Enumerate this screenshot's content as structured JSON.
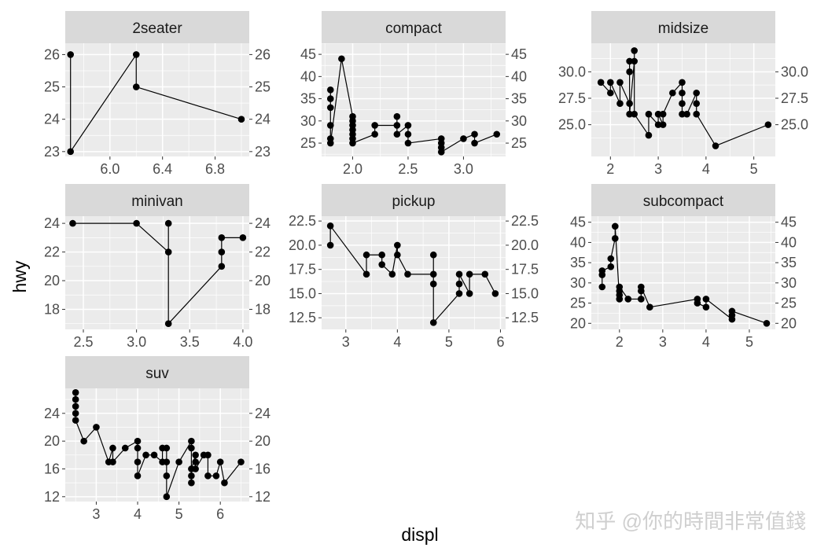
{
  "chart_data": {
    "type": "line",
    "xlabel": "displ",
    "ylabel": "hwy",
    "watermark": "知乎 @你的時間非常值錢",
    "colors": {
      "panel_bg": "#ebebeb",
      "grid": "#ffffff",
      "strip_bg": "#d9d9d9",
      "line": "#000000",
      "point": "#000000"
    },
    "grid": true,
    "panels": [
      {
        "title": "2seater",
        "xlim": [
          5.66,
          7.06
        ],
        "ylim": [
          22.85,
          26.35
        ],
        "xticks": [
          6.0,
          6.4,
          6.8
        ],
        "xtick_labels": [
          "6.0",
          "6.4",
          "6.8"
        ],
        "yticks": [
          23,
          24,
          25,
          26
        ],
        "ytick_labels": [
          "23",
          "24",
          "25",
          "26"
        ],
        "points": [
          [
            5.7,
            26
          ],
          [
            5.7,
            23
          ],
          [
            6.2,
            26
          ],
          [
            6.2,
            25
          ],
          [
            7.0,
            24
          ]
        ]
      },
      {
        "title": "compact",
        "xlim": [
          1.72,
          3.38
        ],
        "ylim": [
          22.0,
          47.5
        ],
        "xticks": [
          2.0,
          2.5,
          3.0
        ],
        "xtick_labels": [
          "2.0",
          "2.5",
          "3.0"
        ],
        "yticks": [
          25,
          30,
          35,
          40,
          45
        ],
        "ytick_labels": [
          "25",
          "30",
          "35",
          "40",
          "45"
        ],
        "points": [
          [
            1.8,
            37
          ],
          [
            1.8,
            35
          ],
          [
            1.8,
            33
          ],
          [
            1.8,
            29
          ],
          [
            1.8,
            26
          ],
          [
            1.8,
            25
          ],
          [
            1.9,
            44
          ],
          [
            2.0,
            31
          ],
          [
            2.0,
            30
          ],
          [
            2.0,
            29
          ],
          [
            2.0,
            28
          ],
          [
            2.0,
            27
          ],
          [
            2.0,
            26
          ],
          [
            2.0,
            25
          ],
          [
            2.2,
            27
          ],
          [
            2.2,
            29
          ],
          [
            2.4,
            29
          ],
          [
            2.4,
            31
          ],
          [
            2.4,
            27
          ],
          [
            2.5,
            29
          ],
          [
            2.5,
            27
          ],
          [
            2.5,
            25
          ],
          [
            2.8,
            26
          ],
          [
            2.8,
            25
          ],
          [
            2.8,
            24
          ],
          [
            2.8,
            23
          ],
          [
            3.0,
            26
          ],
          [
            3.1,
            27
          ],
          [
            3.1,
            25
          ],
          [
            3.3,
            27
          ]
        ]
      },
      {
        "title": "midsize",
        "xlim": [
          1.6,
          5.45
        ],
        "ylim": [
          22.0,
          32.7
        ],
        "xticks": [
          2,
          3,
          4,
          5
        ],
        "xtick_labels": [
          "2",
          "3",
          "4",
          "5"
        ],
        "yticks": [
          25.0,
          27.5,
          30.0
        ],
        "ytick_labels": [
          "25.0",
          "27.5",
          "30.0"
        ],
        "points": [
          [
            1.8,
            29
          ],
          [
            2.0,
            28
          ],
          [
            2.0,
            29
          ],
          [
            2.2,
            27
          ],
          [
            2.2,
            29
          ],
          [
            2.4,
            27
          ],
          [
            2.4,
            30
          ],
          [
            2.4,
            31
          ],
          [
            2.4,
            26
          ],
          [
            2.5,
            31
          ],
          [
            2.5,
            32
          ],
          [
            2.5,
            26
          ],
          [
            2.8,
            24
          ],
          [
            2.8,
            26
          ],
          [
            3.0,
            25
          ],
          [
            3.0,
            26
          ],
          [
            3.1,
            25
          ],
          [
            3.1,
            26
          ],
          [
            3.3,
            28
          ],
          [
            3.5,
            29
          ],
          [
            3.5,
            28
          ],
          [
            3.5,
            27
          ],
          [
            3.5,
            26
          ],
          [
            3.6,
            26
          ],
          [
            3.8,
            28
          ],
          [
            3.8,
            27
          ],
          [
            3.8,
            26
          ],
          [
            4.2,
            23
          ],
          [
            5.3,
            25
          ]
        ]
      },
      {
        "title": "minivan",
        "xlim": [
          2.33,
          4.06
        ],
        "ylim": [
          16.6,
          24.5
        ],
        "xticks": [
          2.5,
          3.0,
          3.5,
          4.0
        ],
        "xtick_labels": [
          "2.5",
          "3.0",
          "3.5",
          "4.0"
        ],
        "yticks": [
          18,
          20,
          22,
          24
        ],
        "ytick_labels": [
          "18",
          "20",
          "22",
          "24"
        ],
        "points": [
          [
            2.4,
            24
          ],
          [
            3.0,
            24
          ],
          [
            3.3,
            22
          ],
          [
            3.3,
            24
          ],
          [
            3.3,
            17
          ],
          [
            3.8,
            21
          ],
          [
            3.8,
            22
          ],
          [
            3.8,
            23
          ],
          [
            4.0,
            23
          ]
        ]
      },
      {
        "title": "pickup",
        "xlim": [
          2.53,
          6.1
        ],
        "ylim": [
          11.3,
          23.0
        ],
        "xticks": [
          3,
          4,
          5,
          6
        ],
        "xtick_labels": [
          "3",
          "4",
          "5",
          "6"
        ],
        "yticks": [
          12.5,
          15.0,
          17.5,
          20.0,
          22.5
        ],
        "ytick_labels": [
          "12.5",
          "15.0",
          "17.5",
          "20.0",
          "22.5"
        ],
        "points": [
          [
            2.7,
            20
          ],
          [
            2.7,
            22
          ],
          [
            3.4,
            17
          ],
          [
            3.4,
            19
          ],
          [
            3.7,
            19
          ],
          [
            3.7,
            18
          ],
          [
            3.9,
            17
          ],
          [
            4.0,
            20
          ],
          [
            4.0,
            19
          ],
          [
            4.2,
            17
          ],
          [
            4.7,
            17
          ],
          [
            4.7,
            16
          ],
          [
            4.7,
            19
          ],
          [
            4.7,
            12
          ],
          [
            5.2,
            15
          ],
          [
            5.2,
            16
          ],
          [
            5.2,
            17
          ],
          [
            5.4,
            15
          ],
          [
            5.4,
            17
          ],
          [
            5.7,
            17
          ],
          [
            5.9,
            15
          ]
        ]
      },
      {
        "title": "subcompact",
        "xlim": [
          1.35,
          5.6
        ],
        "ylim": [
          18.5,
          46.5
        ],
        "xticks": [
          2,
          3,
          4,
          5
        ],
        "xtick_labels": [
          "2",
          "3",
          "4",
          "5"
        ],
        "yticks": [
          20,
          25,
          30,
          35,
          40,
          45
        ],
        "ytick_labels": [
          "20",
          "25",
          "30",
          "35",
          "40",
          "45"
        ],
        "points": [
          [
            1.6,
            29
          ],
          [
            1.6,
            32
          ],
          [
            1.6,
            33
          ],
          [
            1.8,
            34
          ],
          [
            1.8,
            36
          ],
          [
            1.9,
            41
          ],
          [
            1.9,
            44
          ],
          [
            2.0,
            26
          ],
          [
            2.0,
            27
          ],
          [
            2.0,
            28
          ],
          [
            2.0,
            29
          ],
          [
            2.2,
            26
          ],
          [
            2.5,
            26
          ],
          [
            2.5,
            28
          ],
          [
            2.5,
            29
          ],
          [
            2.7,
            24
          ],
          [
            3.8,
            26
          ],
          [
            3.8,
            25
          ],
          [
            4.0,
            24
          ],
          [
            4.0,
            26
          ],
          [
            4.6,
            21
          ],
          [
            4.6,
            22
          ],
          [
            4.6,
            23
          ],
          [
            5.4,
            20
          ]
        ]
      },
      {
        "title": "suv",
        "xlim": [
          2.25,
          6.7
        ],
        "ylim": [
          11.3,
          27.6
        ],
        "xticks": [
          3,
          4,
          5,
          6
        ],
        "xtick_labels": [
          "3",
          "4",
          "5",
          "6"
        ],
        "yticks": [
          12,
          16,
          20,
          24
        ],
        "ytick_labels": [
          "12",
          "16",
          "20",
          "24"
        ],
        "points": [
          [
            2.5,
            27
          ],
          [
            2.5,
            26
          ],
          [
            2.5,
            25
          ],
          [
            2.5,
            24
          ],
          [
            2.5,
            23
          ],
          [
            2.7,
            20
          ],
          [
            3.0,
            22
          ],
          [
            3.3,
            17
          ],
          [
            3.4,
            19
          ],
          [
            3.4,
            17
          ],
          [
            3.7,
            19
          ],
          [
            4.0,
            20
          ],
          [
            4.0,
            19
          ],
          [
            4.0,
            17
          ],
          [
            4.0,
            15
          ],
          [
            4.2,
            18
          ],
          [
            4.4,
            18
          ],
          [
            4.6,
            17
          ],
          [
            4.6,
            19
          ],
          [
            4.7,
            19
          ],
          [
            4.7,
            17
          ],
          [
            4.7,
            15
          ],
          [
            4.7,
            12
          ],
          [
            5.0,
            17
          ],
          [
            5.3,
            20
          ],
          [
            5.3,
            19
          ],
          [
            5.3,
            15
          ],
          [
            5.3,
            14
          ],
          [
            5.3,
            16
          ],
          [
            5.4,
            18
          ],
          [
            5.4,
            17
          ],
          [
            5.4,
            16
          ],
          [
            5.6,
            18
          ],
          [
            5.7,
            18
          ],
          [
            5.7,
            15
          ],
          [
            5.9,
            15
          ],
          [
            6.0,
            17
          ],
          [
            6.1,
            14
          ],
          [
            6.5,
            17
          ]
        ]
      }
    ]
  }
}
